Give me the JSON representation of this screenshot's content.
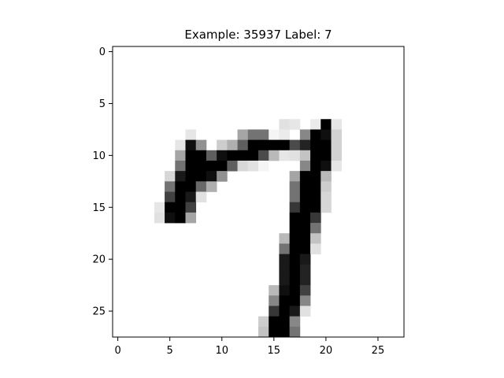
{
  "chart_data": {
    "type": "heatmap",
    "title": "Example: 35937  Label: 7",
    "xlabel": "",
    "ylabel": "",
    "x_ticks": [
      "0",
      "5",
      "10",
      "15",
      "20",
      "25"
    ],
    "y_ticks": [
      "0",
      "5",
      "10",
      "15",
      "20",
      "25"
    ],
    "xlim": [
      -0.5,
      27.5
    ],
    "ylim": [
      27.5,
      -0.5
    ],
    "grid": false,
    "colormap": "gray_r",
    "value_range": [
      0,
      255
    ],
    "shape": [
      28,
      28
    ],
    "rows": [
      [],
      [],
      [],
      [],
      [],
      [],
      [],
      [
        [
          16,
          30
        ],
        [
          17,
          25
        ],
        [
          19,
          20
        ],
        [
          20,
          255
        ],
        [
          21,
          25
        ]
      ],
      [
        [
          7,
          25
        ],
        [
          12,
          90
        ],
        [
          13,
          140
        ],
        [
          14,
          140
        ],
        [
          15,
          10
        ],
        [
          16,
          20
        ],
        [
          18,
          120
        ],
        [
          19,
          255
        ],
        [
          20,
          240
        ],
        [
          21,
          45
        ]
      ],
      [
        [
          6,
          25
        ],
        [
          7,
          240
        ],
        [
          8,
          110
        ],
        [
          10,
          50
        ],
        [
          11,
          80
        ],
        [
          12,
          160
        ],
        [
          13,
          255
        ],
        [
          14,
          255
        ],
        [
          15,
          255
        ],
        [
          16,
          255
        ],
        [
          17,
          180
        ],
        [
          18,
          220
        ],
        [
          19,
          255
        ],
        [
          20,
          255
        ],
        [
          21,
          45
        ]
      ],
      [
        [
          6,
          90
        ],
        [
          7,
          255
        ],
        [
          8,
          255
        ],
        [
          9,
          160
        ],
        [
          10,
          240
        ],
        [
          11,
          255
        ],
        [
          12,
          255
        ],
        [
          13,
          255
        ],
        [
          14,
          180
        ],
        [
          15,
          70
        ],
        [
          16,
          25
        ],
        [
          17,
          30
        ],
        [
          18,
          60
        ],
        [
          19,
          255
        ],
        [
          20,
          255
        ],
        [
          21,
          45
        ]
      ],
      [
        [
          6,
          140
        ],
        [
          7,
          255
        ],
        [
          8,
          255
        ],
        [
          9,
          255
        ],
        [
          10,
          255
        ],
        [
          11,
          160
        ],
        [
          12,
          40
        ],
        [
          13,
          30
        ],
        [
          14,
          10
        ],
        [
          18,
          120
        ],
        [
          19,
          255
        ],
        [
          20,
          240
        ],
        [
          21,
          25
        ]
      ],
      [
        [
          5,
          40
        ],
        [
          6,
          230
        ],
        [
          7,
          255
        ],
        [
          8,
          255
        ],
        [
          9,
          240
        ],
        [
          10,
          110
        ],
        [
          17,
          90
        ],
        [
          18,
          255
        ],
        [
          19,
          255
        ],
        [
          20,
          70
        ]
      ],
      [
        [
          5,
          140
        ],
        [
          6,
          255
        ],
        [
          7,
          255
        ],
        [
          8,
          150
        ],
        [
          9,
          80
        ],
        [
          17,
          140
        ],
        [
          18,
          255
        ],
        [
          19,
          255
        ],
        [
          20,
          50
        ]
      ],
      [
        [
          5,
          190
        ],
        [
          6,
          255
        ],
        [
          7,
          230
        ],
        [
          8,
          30
        ],
        [
          17,
          140
        ],
        [
          18,
          255
        ],
        [
          19,
          255
        ],
        [
          20,
          40
        ]
      ],
      [
        [
          4,
          25
        ],
        [
          5,
          255
        ],
        [
          6,
          255
        ],
        [
          7,
          190
        ],
        [
          17,
          200
        ],
        [
          18,
          255
        ],
        [
          19,
          255
        ],
        [
          20,
          40
        ]
      ],
      [
        [
          4,
          30
        ],
        [
          5,
          240
        ],
        [
          6,
          255
        ],
        [
          7,
          90
        ],
        [
          17,
          255
        ],
        [
          18,
          255
        ],
        [
          19,
          200
        ]
      ],
      [
        [
          17,
          255
        ],
        [
          18,
          255
        ],
        [
          19,
          140
        ]
      ],
      [
        [
          16,
          70
        ],
        [
          17,
          255
        ],
        [
          18,
          255
        ],
        [
          19,
          60
        ]
      ],
      [
        [
          16,
          140
        ],
        [
          17,
          255
        ],
        [
          18,
          255
        ],
        [
          19,
          30
        ]
      ],
      [
        [
          16,
          230
        ],
        [
          17,
          255
        ],
        [
          18,
          230
        ]
      ],
      [
        [
          16,
          230
        ],
        [
          17,
          255
        ],
        [
          18,
          220
        ]
      ],
      [
        [
          16,
          230
        ],
        [
          17,
          255
        ],
        [
          18,
          220
        ]
      ],
      [
        [
          15,
          70
        ],
        [
          16,
          240
        ],
        [
          17,
          255
        ],
        [
          18,
          190
        ]
      ],
      [
        [
          15,
          120
        ],
        [
          16,
          255
        ],
        [
          17,
          255
        ],
        [
          18,
          120
        ]
      ],
      [
        [
          15,
          200
        ],
        [
          16,
          255
        ],
        [
          17,
          230
        ],
        [
          18,
          30
        ]
      ],
      [
        [
          14,
          50
        ],
        [
          15,
          255
        ],
        [
          16,
          255
        ],
        [
          17,
          120
        ]
      ],
      [
        [
          14,
          60
        ],
        [
          15,
          255
        ],
        [
          16,
          255
        ],
        [
          17,
          140
        ]
      ],
      [],
      []
    ]
  }
}
